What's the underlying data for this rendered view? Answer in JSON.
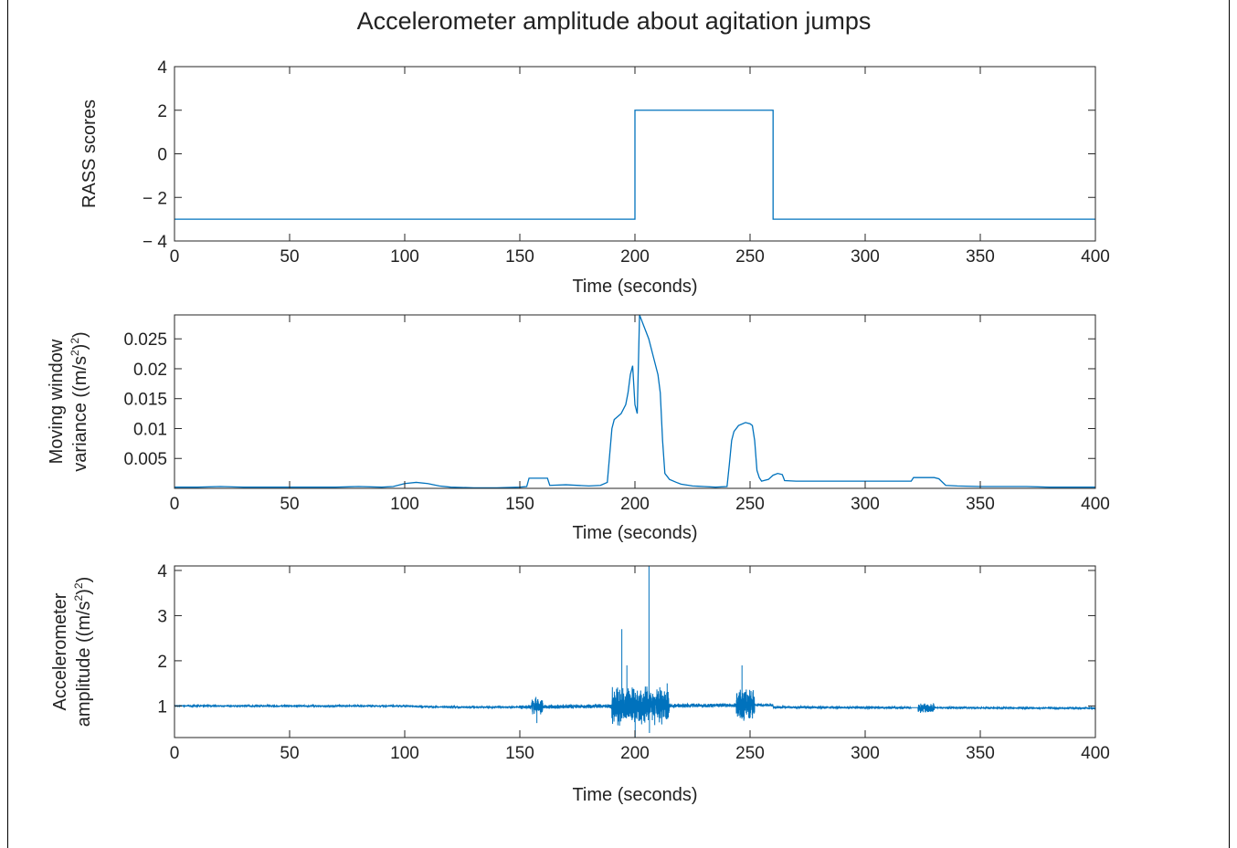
{
  "figure": {
    "title": "Accelerometer amplitude about agitation jumps",
    "line_color": "#0072BD"
  },
  "chart_data": [
    {
      "type": "line",
      "title": "Accelerometer amplitude about agitation jumps",
      "xlabel": "Time (seconds)",
      "ylabel": "RASS scores",
      "xlim": [
        0,
        400
      ],
      "ylim": [
        -4,
        4
      ],
      "x_ticks": [
        0,
        50,
        100,
        150,
        200,
        250,
        300,
        350,
        400
      ],
      "x_tick_labels": [
        "0",
        "50",
        "100",
        "150",
        "200",
        "250",
        "300",
        "350",
        "400"
      ],
      "y_ticks": [
        4,
        2,
        0,
        -2,
        -4
      ],
      "y_tick_labels": [
        "4",
        "2",
        "0",
        "− 2",
        "− 4"
      ],
      "series": [
        {
          "x": [
            0,
            200,
            200,
            260,
            260,
            400
          ],
          "y": [
            -3,
            -3,
            2,
            2,
            -3,
            -3
          ]
        }
      ],
      "grid": false
    },
    {
      "type": "line",
      "xlabel": "Time (seconds)",
      "ylabel_line1": "Moving window",
      "ylabel_line2_prefix": "variance ((m/s",
      "ylabel_line2_suffix": ")",
      "ylabel_sup": "2",
      "xlim": [
        0,
        400
      ],
      "ylim": [
        0,
        0.029
      ],
      "x_ticks": [
        0,
        50,
        100,
        150,
        200,
        250,
        300,
        350,
        400
      ],
      "x_tick_labels": [
        "0",
        "50",
        "100",
        "150",
        "200",
        "250",
        "300",
        "350",
        "400"
      ],
      "y_ticks": [
        0.025,
        0.02,
        0.015,
        0.01,
        0.005
      ],
      "y_tick_labels": [
        "0.025",
        "0.02",
        "0.015",
        "0.01",
        "0.005"
      ],
      "series": [
        {
          "x": [
            0,
            10,
            20,
            30,
            40,
            50,
            60,
            70,
            80,
            90,
            95,
            100,
            105,
            110,
            115,
            120,
            130,
            140,
            150,
            153,
            154,
            162,
            163,
            170,
            180,
            185,
            188,
            190,
            191,
            194,
            196,
            197,
            198,
            199,
            200,
            201,
            202,
            203,
            204,
            205,
            206,
            208,
            210,
            211,
            212,
            213,
            215,
            218,
            220,
            225,
            230,
            235,
            240,
            241,
            242,
            243,
            245,
            248,
            250,
            251,
            252,
            253,
            254,
            255,
            258,
            260,
            262,
            264,
            265,
            270,
            280,
            300,
            320,
            321,
            330,
            332,
            335,
            340,
            350,
            360,
            370,
            380,
            390,
            400
          ],
          "y": [
            0.0002,
            0.0002,
            0.0003,
            0.0002,
            0.0002,
            0.0002,
            0.0002,
            0.0002,
            0.0003,
            0.0002,
            0.0003,
            0.0008,
            0.001,
            0.0008,
            0.0004,
            0.0002,
            0.0001,
            0.0001,
            0.0002,
            0.0003,
            0.0017,
            0.0017,
            0.0005,
            0.0006,
            0.0004,
            0.0005,
            0.001,
            0.01,
            0.0115,
            0.0125,
            0.014,
            0.016,
            0.019,
            0.0205,
            0.014,
            0.0125,
            0.029,
            0.028,
            0.027,
            0.026,
            0.025,
            0.022,
            0.019,
            0.016,
            0.008,
            0.0025,
            0.0015,
            0.001,
            0.0007,
            0.0004,
            0.0003,
            0.0002,
            0.0003,
            0.004,
            0.008,
            0.0095,
            0.0105,
            0.011,
            0.0108,
            0.0105,
            0.008,
            0.003,
            0.0018,
            0.0012,
            0.0015,
            0.0022,
            0.0025,
            0.0023,
            0.0013,
            0.0012,
            0.0012,
            0.0012,
            0.0012,
            0.0018,
            0.0018,
            0.0016,
            0.0005,
            0.0004,
            0.0003,
            0.0003,
            0.0003,
            0.0002,
            0.0002,
            0.0002
          ]
        }
      ],
      "grid": false
    },
    {
      "type": "line",
      "xlabel": "Time (seconds)",
      "ylabel_line1": "Accelerometer",
      "ylabel_line2_prefix": "amplitude ((m/s",
      "ylabel_line2_suffix": ")",
      "ylabel_sup": "2",
      "xlim": [
        0,
        400
      ],
      "ylim": [
        0.3,
        4.1
      ],
      "x_ticks": [
        0,
        50,
        100,
        150,
        200,
        250,
        300,
        350,
        400
      ],
      "x_tick_labels": [
        "0",
        "50",
        "100",
        "150",
        "200",
        "250",
        "300",
        "350",
        "400"
      ],
      "y_ticks": [
        4,
        3,
        2,
        1
      ],
      "y_tick_labels": [
        "4",
        "3",
        "2",
        "1"
      ],
      "series": [
        {
          "baseline": [
            [
              0,
              1.0
            ],
            [
              100,
              1.0
            ],
            [
              110,
              0.98
            ],
            [
              140,
              0.97
            ],
            [
              200,
              1.0
            ],
            [
              259.9,
              1.02
            ],
            [
              260,
              0.97
            ],
            [
              400,
              0.95
            ]
          ],
          "bursts": [
            {
              "start": 0,
              "end": 150,
              "amp": 0.02
            },
            {
              "start": 150,
              "end": 190,
              "amp": 0.05
            },
            {
              "start": 155,
              "end": 160,
              "amp": 0.2
            },
            {
              "start": 190,
              "end": 215,
              "amp": 0.45
            },
            {
              "start": 215,
              "end": 245,
              "amp": 0.05
            },
            {
              "start": 244,
              "end": 252,
              "amp": 0.4
            },
            {
              "start": 252,
              "end": 320,
              "amp": 0.03
            },
            {
              "start": 323,
              "end": 330,
              "amp": 0.12
            },
            {
              "start": 330,
              "end": 400,
              "amp": 0.02
            }
          ],
          "spikes": [
            {
              "x": 194.3,
              "y": 2.7
            },
            {
              "x": 196.5,
              "y": 1.9
            },
            {
              "x": 200.1,
              "y": 0.3
            },
            {
              "x": 206.1,
              "y": 4.1
            },
            {
              "x": 206.3,
              "y": 0.4
            },
            {
              "x": 246.5,
              "y": 1.9
            },
            {
              "x": 157.0,
              "y": 1.2
            },
            {
              "x": 157.4,
              "y": 0.62
            },
            {
              "x": 214.0,
              "y": 1.5
            }
          ]
        }
      ],
      "grid": false
    }
  ]
}
